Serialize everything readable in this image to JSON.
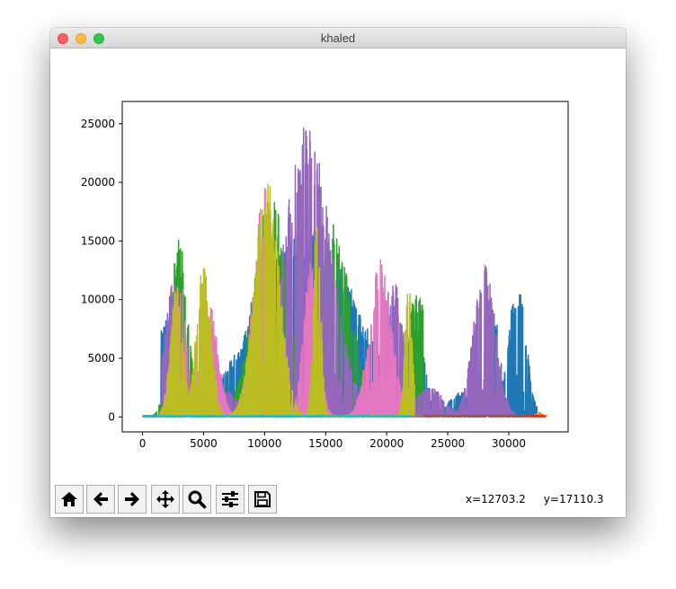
{
  "window": {
    "title": "khaled"
  },
  "toolbar": {
    "buttons": [
      {
        "name": "home-button",
        "icon": "home-icon"
      },
      {
        "name": "back-button",
        "icon": "arrow-left-icon"
      },
      {
        "name": "forward-button",
        "icon": "arrow-right-icon"
      },
      {
        "name": "pan-button",
        "icon": "move-icon"
      },
      {
        "name": "zoom-button",
        "icon": "magnifier-icon"
      },
      {
        "name": "configure-subplots-button",
        "icon": "sliders-icon"
      },
      {
        "name": "save-button",
        "icon": "floppy-disk-icon"
      }
    ],
    "coords": {
      "x": "x=12703.2",
      "y": "y=17110.3"
    }
  },
  "chart_data": {
    "type": "line",
    "title": "",
    "xlabel": "",
    "ylabel": "",
    "xlim": [
      -1660,
      34860
    ],
    "ylim": [
      -1280,
      26900
    ],
    "x_ticks": [
      0,
      5000,
      10000,
      15000,
      20000,
      25000,
      30000
    ],
    "x_tick_labels": [
      "0",
      "5000",
      "10000",
      "15000",
      "20000",
      "25000",
      "30000"
    ],
    "y_ticks": [
      0,
      5000,
      10000,
      15000,
      20000,
      25000
    ],
    "y_tick_labels": [
      "0",
      "5000",
      "10000",
      "15000",
      "20000",
      "25000"
    ],
    "grid": false,
    "legend": "none",
    "series": [
      {
        "color": "#1f77b4",
        "peaks": [
          [
            2000,
            9000,
            800
          ],
          [
            13500,
            16500,
            4000
          ],
          [
            22500,
            8000,
            600
          ],
          [
            26000,
            2200,
            900
          ],
          [
            28800,
            9000,
            500
          ],
          [
            30700,
            12000,
            700
          ]
        ],
        "x_range": [
          1500,
          33000
        ]
      },
      {
        "color": "#ff7f0e",
        "peaks": [
          [
            32500,
            300,
            400
          ]
        ],
        "x_range": [
          31000,
          33200
        ]
      },
      {
        "color": "#2ca02c",
        "peaks": [
          [
            3000,
            15500,
            700
          ],
          [
            10500,
            19000,
            1400
          ],
          [
            15500,
            17000,
            1500
          ],
          [
            22500,
            11000,
            900
          ]
        ],
        "x_range": [
          300,
          23000
        ]
      },
      {
        "color": "#d62728",
        "peaks": [],
        "x_range": [
          0,
          33000
        ]
      },
      {
        "color": "#9467bd",
        "peaks": [
          [
            2500,
            11500,
            700
          ],
          [
            6500,
            2500,
            1200
          ],
          [
            13500,
            25500,
            1900
          ],
          [
            20500,
            12000,
            900
          ],
          [
            23500,
            2500,
            1200
          ],
          [
            28000,
            13000,
            900
          ]
        ],
        "x_range": [
          1600,
          31500
        ]
      },
      {
        "color": "#8c564b",
        "peaks": [],
        "x_range": [
          22000,
          31600
        ]
      },
      {
        "color": "#e377c2",
        "peaks": [
          [
            3000,
            13000,
            600
          ],
          [
            5500,
            9500,
            700
          ],
          [
            10000,
            19500,
            900
          ],
          [
            13800,
            13500,
            600
          ],
          [
            19500,
            13500,
            900
          ]
        ],
        "x_range": [
          1000,
          23000
        ]
      },
      {
        "color": "#7f7f7f",
        "peaks": [],
        "x_range": [
          0,
          23000
        ]
      },
      {
        "color": "#bcbd22",
        "peaks": [
          [
            2800,
            11500,
            500
          ],
          [
            5000,
            13000,
            600
          ],
          [
            10200,
            20500,
            1000
          ],
          [
            14300,
            17000,
            300
          ],
          [
            21800,
            11500,
            300
          ]
        ],
        "x_range": [
          1200,
          22300
        ]
      },
      {
        "color": "#17becf",
        "peaks": [],
        "x_range": [
          0,
          22000
        ]
      }
    ]
  }
}
